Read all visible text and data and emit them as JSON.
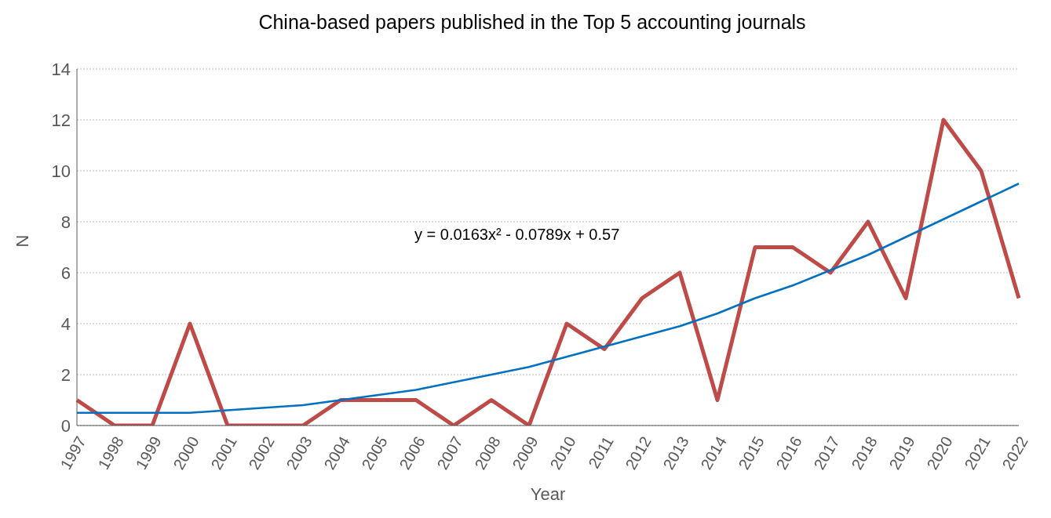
{
  "chart_data": {
    "type": "line",
    "title": "China-based papers published in the Top 5 accounting journals",
    "xlabel": "Year",
    "ylabel": "N",
    "categories": [
      "1997",
      "1998",
      "1999",
      "2000",
      "2001",
      "2002",
      "2003",
      "2004",
      "2005",
      "2006",
      "2007",
      "2008",
      "2009",
      "2010",
      "2011",
      "2012",
      "2013",
      "2014",
      "2015",
      "2016",
      "2017",
      "2018",
      "2019",
      "2020",
      "2021",
      "2022"
    ],
    "series": [
      {
        "color": "#be4b48",
        "values": [
          1,
          0,
          0,
          4,
          0,
          0,
          0,
          1,
          1,
          1,
          0,
          1,
          0,
          4,
          3,
          5,
          6,
          1,
          7,
          7,
          6,
          8,
          5,
          12,
          10,
          5
        ]
      },
      {
        "color": "#0070c0",
        "values": [
          0.5,
          0.5,
          0.5,
          0.5,
          0.6,
          0.7,
          0.8,
          1.0,
          1.2,
          1.4,
          1.7,
          2.0,
          2.3,
          2.7,
          3.1,
          3.5,
          3.9,
          4.4,
          5.0,
          5.5,
          6.1,
          6.7,
          7.4,
          8.1,
          8.8,
          9.5
        ]
      }
    ],
    "annotations": [
      "y = 0.0163x² - 0.0789x + 0.57"
    ],
    "ylim": [
      0,
      14
    ],
    "yticks": [
      0,
      2,
      4,
      6,
      8,
      10,
      12,
      14
    ],
    "grid": "y",
    "legend": false,
    "marker": "none",
    "line_style": "solid"
  }
}
